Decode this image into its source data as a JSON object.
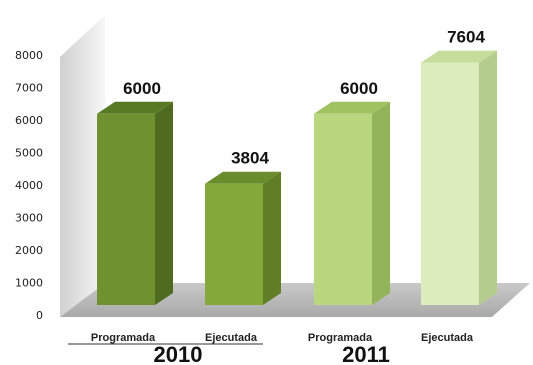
{
  "chart_data": {
    "type": "bar",
    "title": "",
    "xlabel": "",
    "ylabel": "",
    "ylim": [
      0,
      8000
    ],
    "yticks": [
      0,
      1000,
      2000,
      3000,
      4000,
      5000,
      6000,
      7000,
      8000
    ],
    "grid": false,
    "groups": [
      "2010",
      "2011"
    ],
    "categories": [
      "Programada",
      "Ejecutada",
      "Programada",
      "Ejecutada"
    ],
    "values": [
      6000,
      3804,
      6000,
      7604
    ],
    "data_labels": [
      "6000",
      "3804",
      "6000",
      "7604"
    ],
    "colors": {
      "front": [
        "#6f9130",
        "#85a83a",
        "#b8d77f",
        "#dbecbd"
      ],
      "side": [
        "#4f6b1f",
        "#5f7e25",
        "#93b45a",
        "#b4cc8e"
      ],
      "top": [
        "#587a24",
        "#6a8d2b",
        "#a0c260",
        "#c5dc9b"
      ]
    }
  }
}
